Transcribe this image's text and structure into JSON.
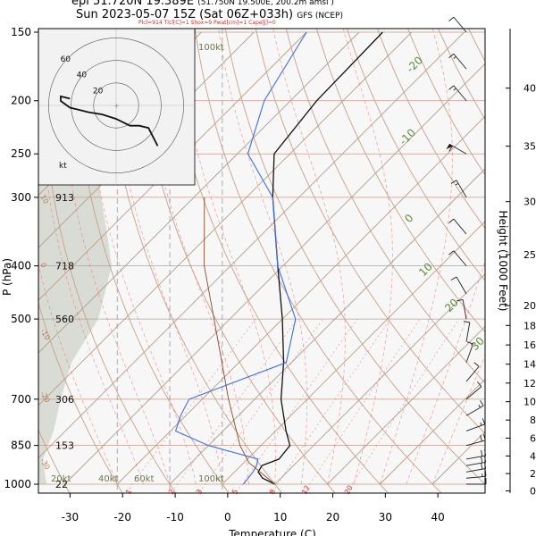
{
  "header": {
    "line1_main": "epi 51.720N 19.389E",
    "line1_sub": "(51.750N 19.500E, 200.2m amsl )",
    "line2_main": "Sun 2023-05-07 15Z (Sat 06Z+033h)",
    "line2_sub": "GFS (NCEP)",
    "params": "Plcl=914 Tlcl[C]=1 Shox=9 Pwat[cm]=1 Cape[J]=0"
  },
  "colors": {
    "temperature": "#111111",
    "dewpoint": "#3b6ee6",
    "isotherm": "#b08a6a",
    "dry_adiabat": "#c7a08a",
    "moist_adiabat": "#f07070",
    "mixing_ratio": "#e06060",
    "isobar": "#9a7a6a",
    "humidity_shade": "#d9dcd4",
    "parcel": "#8a4a2a"
  },
  "chart_data": {
    "type": "line",
    "xlabel": "Temperature (C)",
    "ylabel": "P (hPa)",
    "y2label": "Height (1000 Feet)",
    "xlim": [
      -35,
      50
    ],
    "ylim": [
      1000,
      150
    ],
    "y_scale": "log",
    "xticks": [
      -30,
      -20,
      -10,
      0,
      10,
      20,
      30,
      40
    ],
    "yticks": [
      150,
      200,
      250,
      300,
      400,
      500,
      700,
      850,
      1000
    ],
    "height_ticks": [
      0,
      2,
      4,
      6,
      8,
      10,
      12,
      14,
      16,
      18,
      20,
      25,
      30,
      35,
      40
    ],
    "height_labels_m": [
      {
        "p": 150,
        "label": "1359"
      },
      {
        "p": 200,
        "label": "1174"
      },
      {
        "p": 250,
        "label": "1031"
      },
      {
        "p": 300,
        "label": "913"
      },
      {
        "p": 400,
        "label": "718"
      },
      {
        "p": 500,
        "label": "560"
      },
      {
        "p": 700,
        "label": "306"
      },
      {
        "p": 850,
        "label": "153"
      },
      {
        "p": 1000,
        "label": "22"
      }
    ],
    "wind_speed_labels": [
      "20kt",
      "40kt",
      "60kt",
      "100kt"
    ],
    "skew_labels": [
      "-20",
      "-10",
      "0",
      "10",
      "20",
      "30"
    ],
    "dry_adiabat_labels": [
      "10",
      "0",
      "-10",
      "-20",
      "-30"
    ],
    "mixing_ratio_labels": [
      "1",
      "2",
      "3",
      "5",
      "8",
      "12",
      "20"
    ],
    "series": [
      {
        "key": "temperature",
        "values": [
          [
            1000,
            10
          ],
          [
            975,
            6.5
          ],
          [
            950,
            4.5
          ],
          [
            925,
            4.0
          ],
          [
            900,
            6.0
          ],
          [
            850,
            5.5
          ],
          [
            800,
            2.0
          ],
          [
            700,
            -5.0
          ],
          [
            600,
            -11.5
          ],
          [
            500,
            -20.0
          ],
          [
            400,
            -31.0
          ],
          [
            300,
            -45.0
          ],
          [
            250,
            -53.0
          ],
          [
            200,
            -55.0
          ],
          [
            150,
            -55.5
          ]
        ]
      },
      {
        "key": "dewpoint",
        "values": [
          [
            1000,
            4.0
          ],
          [
            950,
            3.5
          ],
          [
            925,
            3.0
          ],
          [
            900,
            2.0
          ],
          [
            850,
            -10.0
          ],
          [
            800,
            -19.0
          ],
          [
            750,
            -21.0
          ],
          [
            700,
            -22.5
          ],
          [
            600,
            -11.0
          ],
          [
            500,
            -17.5
          ],
          [
            400,
            -31.0
          ],
          [
            300,
            -45.0
          ],
          [
            250,
            -58.0
          ],
          [
            200,
            -65.0
          ],
          [
            150,
            -70.0
          ]
        ]
      },
      {
        "key": "parcel",
        "values": [
          [
            1000,
            10
          ],
          [
            914,
            1
          ],
          [
            850,
            -4
          ],
          [
            700,
            -15
          ],
          [
            500,
            -33
          ],
          [
            400,
            -45
          ],
          [
            300,
            -58
          ]
        ]
      }
    ],
    "hodograph": {
      "rings_kt": [
        20,
        40,
        60
      ],
      "ring_labels": [
        "20",
        "40",
        "60"
      ],
      "unit_label": "kt",
      "points_kt": [
        [
          18,
          -18
        ],
        [
          14,
          -10
        ],
        [
          10,
          -9
        ],
        [
          6,
          -9
        ],
        [
          0,
          -6
        ],
        [
          -6,
          -4
        ],
        [
          -12,
          -3
        ],
        [
          -16,
          -2
        ],
        [
          -20,
          -1
        ],
        [
          -24,
          2
        ],
        [
          -24,
          4
        ],
        [
          -20,
          3
        ]
      ]
    },
    "wind_barbs": [
      {
        "p": 1000,
        "speed_kt": 10,
        "dir": 90
      },
      {
        "p": 975,
        "speed_kt": 15,
        "dir": 85
      },
      {
        "p": 950,
        "speed_kt": 20,
        "dir": 80
      },
      {
        "p": 925,
        "speed_kt": 20,
        "dir": 80
      },
      {
        "p": 900,
        "speed_kt": 20,
        "dir": 80
      },
      {
        "p": 850,
        "speed_kt": 20,
        "dir": 75
      },
      {
        "p": 800,
        "speed_kt": 15,
        "dir": 70
      },
      {
        "p": 750,
        "speed_kt": 15,
        "dir": 60
      },
      {
        "p": 700,
        "speed_kt": 10,
        "dir": 50
      },
      {
        "p": 650,
        "speed_kt": 10,
        "dir": 40
      },
      {
        "p": 600,
        "speed_kt": 10,
        "dir": 20
      },
      {
        "p": 550,
        "speed_kt": 10,
        "dir": 10
      },
      {
        "p": 500,
        "speed_kt": 10,
        "dir": 350
      },
      {
        "p": 450,
        "speed_kt": 10,
        "dir": 330
      },
      {
        "p": 400,
        "speed_kt": 10,
        "dir": 320
      },
      {
        "p": 350,
        "speed_kt": 10,
        "dir": 320
      },
      {
        "p": 300,
        "speed_kt": 15,
        "dir": 330
      },
      {
        "p": 250,
        "speed_kt": 60,
        "dir": 300
      },
      {
        "p": 200,
        "speed_kt": 15,
        "dir": 320
      },
      {
        "p": 175,
        "speed_kt": 15,
        "dir": 320
      },
      {
        "p": 150,
        "speed_kt": 10,
        "dir": 320
      }
    ]
  }
}
